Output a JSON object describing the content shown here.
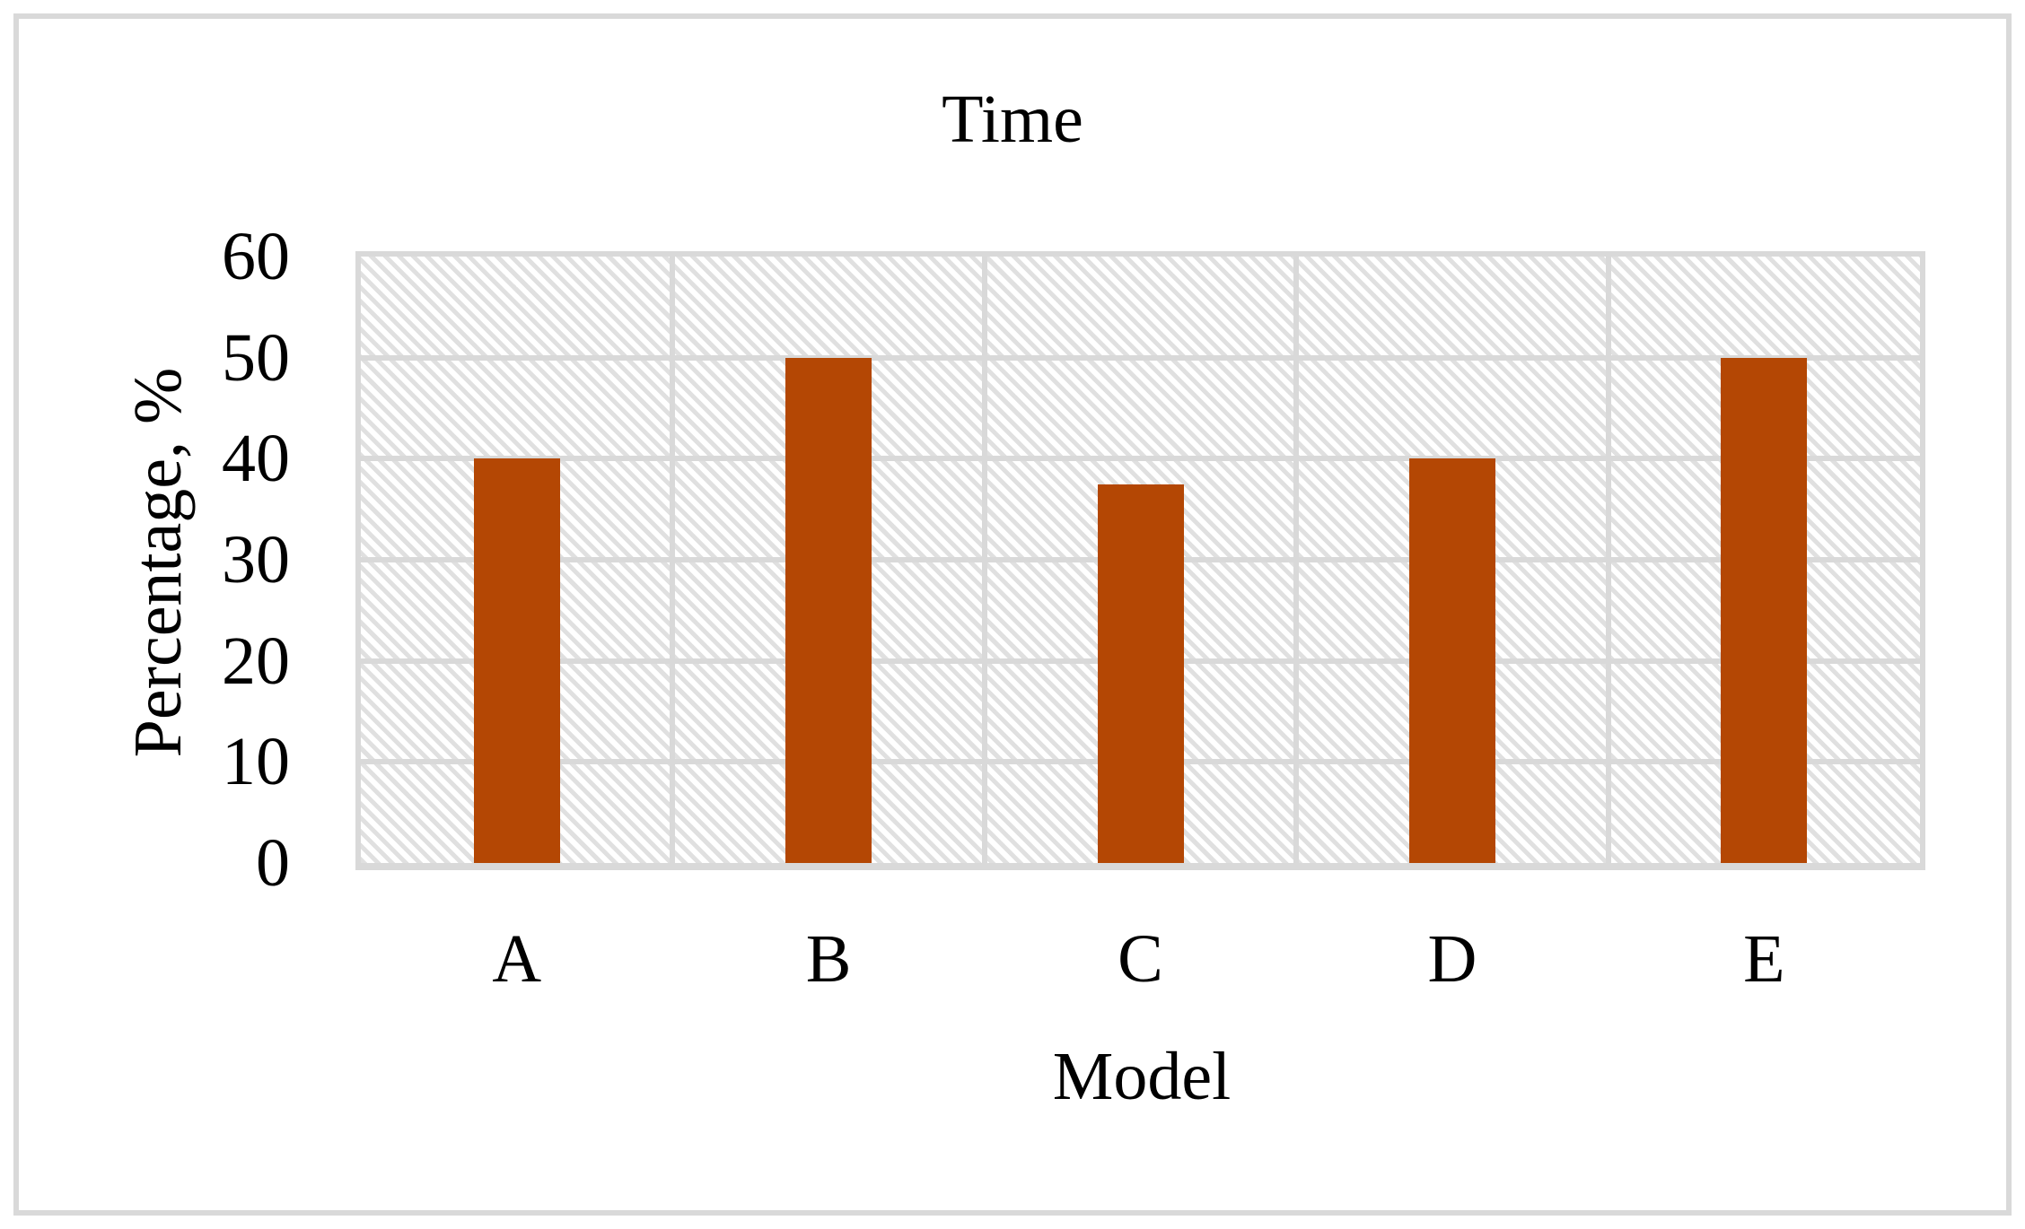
{
  "chart_data": {
    "type": "bar",
    "title": "Time",
    "xlabel": "Model",
    "ylabel": "Percentage, %",
    "categories": [
      "A",
      "B",
      "C",
      "D",
      "E"
    ],
    "values": [
      40,
      50,
      37.5,
      40,
      50
    ],
    "ylim": [
      0,
      60
    ],
    "yticks": [
      0,
      10,
      20,
      30,
      40,
      50,
      60
    ],
    "legend_position": "none",
    "grid": "horizontal-and-vertical",
    "plot_background": "light-diagonal-hatch",
    "colors": {
      "bar_fill": "#B44704",
      "gridline": "#D9D9D9",
      "frame_border": "#D9D9D9",
      "hatch_stripe": "#D6D6D6",
      "text": "#000000",
      "background": "#FFFFFF"
    }
  }
}
